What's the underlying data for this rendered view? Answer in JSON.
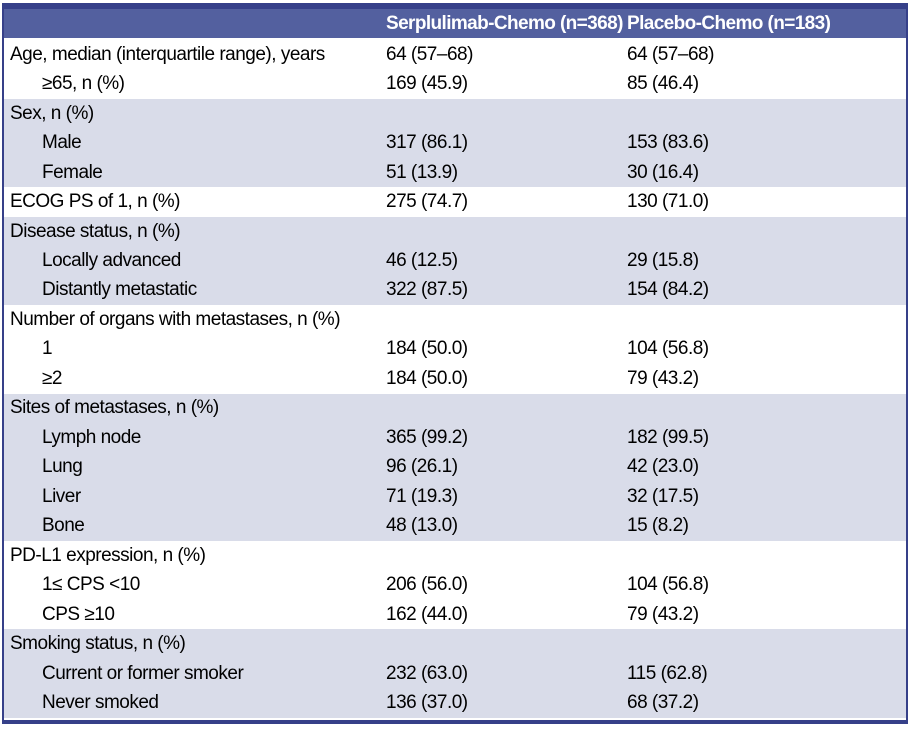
{
  "theme": {
    "border_color": "#364089",
    "header_bg": "#53609f",
    "header_text": "#ffffff",
    "row_bg": "#ffffff",
    "alt_row_bg": "#d9dce9",
    "body_text": "#000000"
  },
  "table": {
    "column_headers": [
      "Serplulimab-Chemo (n=368)",
      "Placebo-Chemo (n=183)"
    ],
    "sections": [
      {
        "shade": "white",
        "rows": [
          {
            "label": "Age, median (interquartile range), years",
            "indent": false,
            "c1": "64 (57–68)",
            "c2": "64 (57–68)"
          },
          {
            "label": "≥65, n (%)",
            "indent": true,
            "c1": "169 (45.9)",
            "c2": "85 (46.4)"
          }
        ]
      },
      {
        "shade": "lavender",
        "rows": [
          {
            "label": "Sex, n (%)",
            "indent": false,
            "c1": "",
            "c2": ""
          },
          {
            "label": "Male",
            "indent": true,
            "c1": "317 (86.1)",
            "c2": "153 (83.6)"
          },
          {
            "label": "Female",
            "indent": true,
            "c1": "51 (13.9)",
            "c2": "30 (16.4)"
          }
        ]
      },
      {
        "shade": "white",
        "rows": [
          {
            "label": "ECOG PS of 1, n (%)",
            "indent": false,
            "c1": "275 (74.7)",
            "c2": "130 (71.0)"
          }
        ]
      },
      {
        "shade": "lavender",
        "rows": [
          {
            "label": "Disease status, n (%)",
            "indent": false,
            "c1": "",
            "c2": ""
          },
          {
            "label": "Locally advanced",
            "indent": true,
            "c1": "46 (12.5)",
            "c2": "29 (15.8)"
          },
          {
            "label": "Distantly metastatic",
            "indent": true,
            "c1": "322 (87.5)",
            "c2": "154 (84.2)"
          }
        ]
      },
      {
        "shade": "white",
        "rows": [
          {
            "label": "Number of organs with metastases, n (%)",
            "indent": false,
            "c1": "",
            "c2": ""
          },
          {
            "label": "1",
            "indent": true,
            "c1": "184 (50.0)",
            "c2": "104 (56.8)"
          },
          {
            "label": "≥2",
            "indent": true,
            "c1": "184 (50.0)",
            "c2": "79 (43.2)"
          }
        ]
      },
      {
        "shade": "lavender",
        "rows": [
          {
            "label": "Sites of metastases, n (%)",
            "indent": false,
            "c1": "",
            "c2": ""
          },
          {
            "label": "Lymph node",
            "indent": true,
            "c1": "365 (99.2)",
            "c2": "182 (99.5)"
          },
          {
            "label": "Lung",
            "indent": true,
            "c1": "96 (26.1)",
            "c2": "42 (23.0)"
          },
          {
            "label": "Liver",
            "indent": true,
            "c1": "71 (19.3)",
            "c2": "32 (17.5)"
          },
          {
            "label": "Bone",
            "indent": true,
            "c1": "48 (13.0)",
            "c2": "15 (8.2)"
          }
        ]
      },
      {
        "shade": "white",
        "rows": [
          {
            "label": "PD-L1 expression, n (%)",
            "indent": false,
            "c1": "",
            "c2": ""
          },
          {
            "label": "1≤ CPS <10",
            "indent": true,
            "c1": "206 (56.0)",
            "c2": "104 (56.8)"
          },
          {
            "label": "CPS ≥10",
            "indent": true,
            "c1": "162 (44.0)",
            "c2": "79 (43.2)"
          }
        ]
      },
      {
        "shade": "lavender",
        "rows": [
          {
            "label": "Smoking status, n (%)",
            "indent": false,
            "c1": "",
            "c2": ""
          },
          {
            "label": "Current or former smoker",
            "indent": true,
            "c1": "232 (63.0)",
            "c2": "115 (62.8)"
          },
          {
            "label": "Never smoked",
            "indent": true,
            "c1": "136 (37.0)",
            "c2": "68 (37.2)"
          }
        ]
      }
    ]
  }
}
